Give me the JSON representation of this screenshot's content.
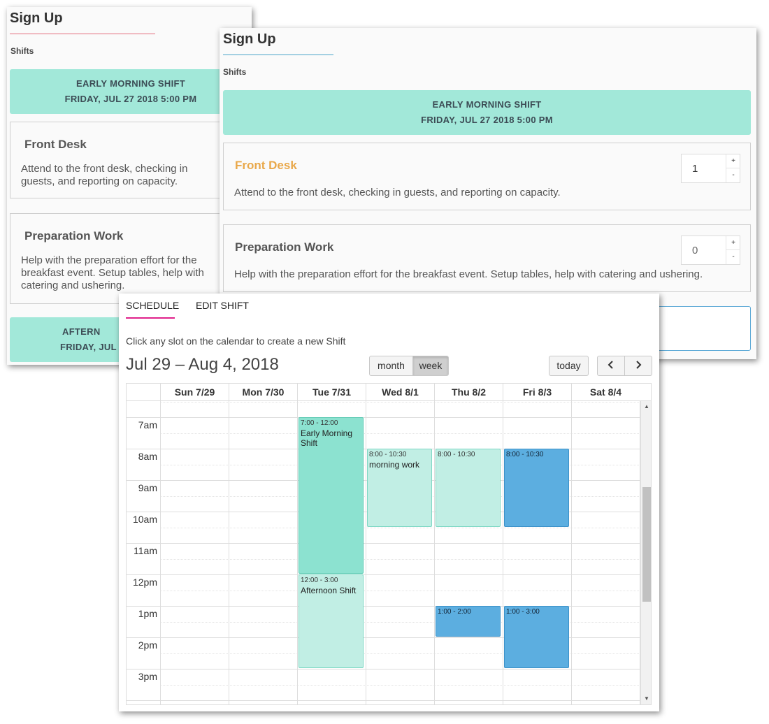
{
  "signup": {
    "title": "Sign Up",
    "section": "Shifts",
    "banner1_line1": "EARLY MORNING SHIFT",
    "banner1_line2": "FRIDAY, JUL 27 2018 5:00 PM",
    "banner2_line1": "AFTERN",
    "banner2_line2": "FRIDAY, JUL",
    "roles": [
      {
        "name": "Front Desk",
        "desc": "Attend to the front desk, checking in guests, and reporting on capacity.",
        "qty": "1"
      },
      {
        "name": "Preparation Work",
        "desc": "Help with the preparation effort for the breakfast event. Setup tables, help with catering and ushering.",
        "qty": "0"
      }
    ],
    "back_desc_front_1": "Attend to the front desk, checking in",
    "back_desc_front_2": "guests, and reporting on capacity.",
    "back_desc_prep_1": "Help with the preparation effort for the",
    "back_desc_prep_2": "breakfast event. Setup tables, help with",
    "back_desc_prep_3": "catering and ushering.",
    "plus": "+",
    "minus": "-",
    "colors": {
      "banner": "#a2e8d9",
      "accent_orange": "#e9a84a"
    }
  },
  "schedule": {
    "tabs": [
      "SCHEDULE",
      "EDIT SHIFT"
    ],
    "hint": "Click any slot on the calendar to create a new Shift",
    "range": "Jul 29 – Aug 4, 2018",
    "view_month": "month",
    "view_week": "week",
    "today": "today",
    "prev_icon": "chevron-left-icon",
    "next_icon": "chevron-right-icon",
    "days": [
      "Sun 7/29",
      "Mon 7/30",
      "Tue 7/31",
      "Wed 8/1",
      "Thu 8/2",
      "Fri 8/3",
      "Sat 8/4"
    ],
    "hours": [
      "7am",
      "8am",
      "9am",
      "10am",
      "11am",
      "12pm",
      "1pm",
      "2pm",
      "3pm"
    ],
    "events": [
      {
        "day": 2,
        "start": 7,
        "end": 12,
        "time": "7:00 - 12:00",
        "title": "Early Morning Shift",
        "style": "dark"
      },
      {
        "day": 2,
        "start": 12,
        "end": 15,
        "time": "12:00 - 3:00",
        "title": "Afternoon Shift",
        "style": "light"
      },
      {
        "day": 3,
        "start": 8,
        "end": 10.5,
        "time": "8:00 - 10:30",
        "title": "morning work",
        "style": "light"
      },
      {
        "day": 4,
        "start": 8,
        "end": 10.5,
        "time": "8:00 - 10:30",
        "title": "",
        "style": "light"
      },
      {
        "day": 5,
        "start": 8,
        "end": 10.5,
        "time": "8:00 - 10:30",
        "title": "",
        "style": "blue"
      },
      {
        "day": 4,
        "start": 13,
        "end": 14,
        "time": "1:00 - 2:00",
        "title": "",
        "style": "blue"
      },
      {
        "day": 5,
        "start": 13,
        "end": 15,
        "time": "1:00 - 3:00",
        "title": "",
        "style": "blue"
      }
    ]
  }
}
